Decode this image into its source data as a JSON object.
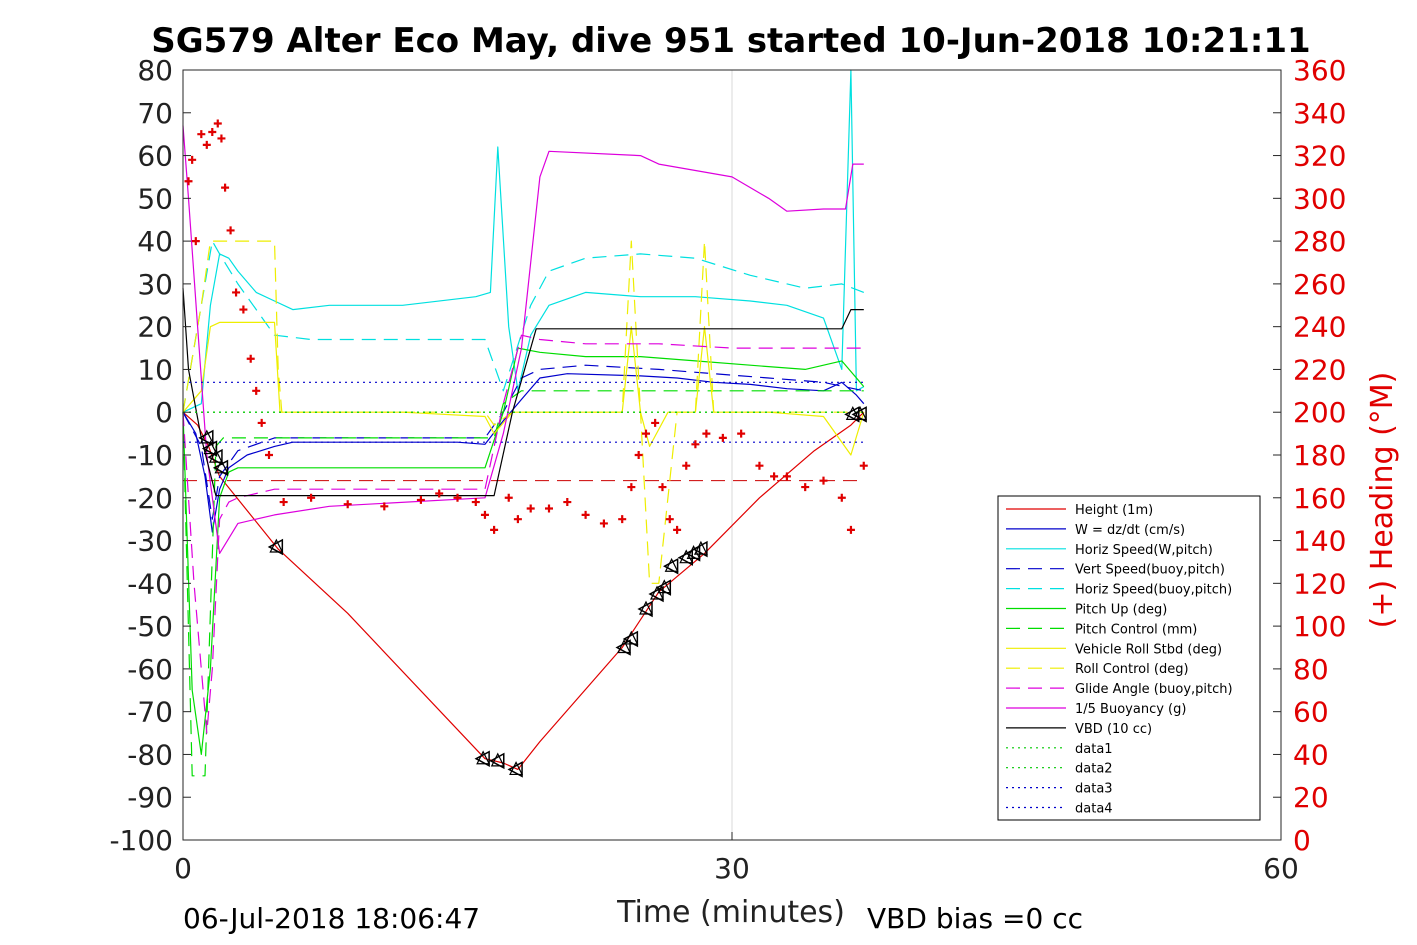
{
  "chart_data": {
    "type": "line",
    "title": "SG579 Alter Eco May, dive 951 started 10-Jun-2018 10:21:11",
    "xlabel": "Time (minutes)",
    "ylabel": "",
    "ylabel_right": "(+) Heading (°M)",
    "xlim": [
      0,
      60
    ],
    "ylim": [
      -100,
      80
    ],
    "ylim_right": [
      0,
      360
    ],
    "xticks": [
      0,
      30,
      60
    ],
    "yticks": [
      80,
      70,
      60,
      50,
      40,
      30,
      20,
      10,
      0,
      -10,
      -20,
      -30,
      -40,
      -50,
      -60,
      -70,
      -80,
      -90,
      -100
    ],
    "yticks_right": [
      360,
      340,
      320,
      300,
      280,
      260,
      240,
      220,
      200,
      180,
      160,
      140,
      120,
      100,
      80,
      60,
      40,
      20,
      0
    ],
    "grid": "x at 30 only",
    "legend_position": "lower-right",
    "footer_left": "06-Jul-2018 18:06:47",
    "footer_right": "VBD bias =0 cc",
    "colors": {
      "right_axis": "#e00000"
    },
    "series": [
      {
        "name": "Height (1m)",
        "color": "#e00000",
        "style": "solid",
        "x": [
          0,
          0.8,
          1.4,
          2,
          5.2,
          9,
          16.5,
          17.5,
          18.3,
          19.5,
          24,
          26,
          28.5,
          31.5,
          34.5,
          36.5,
          37.2
        ],
        "y": [
          0,
          -3,
          -8,
          -15,
          -32,
          -47,
          -81,
          -82,
          -83.5,
          -77,
          -55,
          -42,
          -33,
          -20,
          -9,
          -3,
          0
        ]
      },
      {
        "name": "W = dz/dt (cm/s)",
        "color": "#0000cc",
        "style": "solid",
        "x": [
          0,
          0.7,
          1.2,
          1.6,
          2,
          2.5,
          3.5,
          5,
          6,
          9,
          12,
          15,
          16.5,
          17.5,
          18.5,
          19.5,
          21,
          25,
          27,
          29,
          31,
          33,
          35,
          36,
          36.8,
          37.2
        ],
        "y": [
          0,
          -5,
          -15,
          -28,
          -18,
          -13,
          -10,
          -8,
          -7,
          -7,
          -7,
          -7,
          -7.5,
          -2,
          3,
          8,
          9,
          8.5,
          8,
          7,
          6.5,
          5.5,
          5,
          7,
          4,
          2
        ]
      },
      {
        "name": "Horiz Speed(W,pitch)",
        "color": "#00e0e0",
        "style": "solid",
        "x": [
          0,
          1,
          1.5,
          2,
          2.5,
          3,
          4,
          5,
          6,
          8,
          12,
          16,
          16.8,
          17.2,
          17.8,
          18.3,
          19,
          20,
          22,
          25,
          28,
          31,
          33,
          35,
          36,
          36.5,
          36.8,
          37.2
        ],
        "y": [
          0,
          2,
          25,
          37,
          36,
          33,
          28,
          26,
          24,
          25,
          25,
          27,
          28,
          62,
          20,
          5,
          18,
          25,
          28,
          27,
          27,
          26,
          25,
          22,
          10,
          80,
          5,
          6
        ]
      },
      {
        "name": "Vert Speed(buoy,pitch)",
        "color": "#0000cc",
        "style": "dashed",
        "x": [
          0,
          1,
          1.6,
          2,
          3,
          5,
          8,
          12,
          16.5,
          17.5,
          18.5,
          19.5,
          22,
          26,
          29,
          32,
          35,
          37.2
        ],
        "y": [
          0,
          -8,
          -25,
          -15,
          -9,
          -6,
          -6,
          -6,
          -6,
          0,
          8,
          10,
          11,
          10,
          9,
          8,
          7,
          5
        ]
      },
      {
        "name": "Horiz Speed(buoy,pitch)",
        "color": "#00e0e0",
        "style": "dashed",
        "x": [
          0,
          1,
          1.6,
          2,
          3,
          5,
          7,
          10,
          16.5,
          17.5,
          19,
          20,
          22,
          25,
          28,
          31,
          34,
          36,
          37.2
        ],
        "y": [
          0,
          25,
          40,
          37,
          30,
          18,
          17,
          17,
          17,
          5,
          25,
          33,
          36,
          37,
          36,
          32,
          29,
          30,
          28
        ]
      },
      {
        "name": "Pitch Up (deg)",
        "color": "#00dd00",
        "style": "solid",
        "x": [
          0,
          0.5,
          1,
          1.5,
          2,
          2.5,
          3,
          5,
          8,
          12,
          16.5,
          17.5,
          18.3,
          19.5,
          22,
          25,
          28,
          31,
          34,
          36,
          37.2
        ],
        "y": [
          0,
          -65,
          -80,
          -60,
          -20,
          -14,
          -13,
          -13,
          -13,
          -13,
          -13,
          0,
          15,
          14,
          13,
          13,
          12,
          11,
          10,
          12,
          6
        ]
      },
      {
        "name": "Pitch Control (mm)",
        "color": "#00dd00",
        "style": "dashed",
        "x": [
          0,
          0.5,
          1.2,
          1.8,
          2.2,
          5,
          10,
          16.5,
          17,
          17.5,
          18.5,
          20,
          25,
          30,
          35,
          37.2
        ],
        "y": [
          0,
          -85,
          -85,
          -8,
          -6,
          -6,
          -6,
          -6,
          -6,
          2,
          5,
          5,
          5,
          5,
          5,
          5
        ]
      },
      {
        "name": "Vehicle Roll Stbd (deg)",
        "color": "#eeee00",
        "style": "solid",
        "x": [
          0,
          1,
          1.5,
          2,
          4,
          5,
          5.3,
          8,
          12,
          16.5,
          17,
          18,
          20,
          24,
          24.5,
          25,
          25.5,
          26.5,
          27,
          28,
          28.5,
          29,
          32,
          35,
          36.5,
          37.2
        ],
        "y": [
          0,
          5,
          20,
          21,
          21,
          21,
          0,
          0,
          0,
          -1,
          -5,
          0,
          0,
          0,
          20,
          0,
          -8,
          0,
          0,
          0,
          20,
          0,
          0,
          -1,
          -10,
          0
        ]
      },
      {
        "name": "Roll Control (deg)",
        "color": "#eeee00",
        "style": "dashed",
        "x": [
          0,
          1,
          1.5,
          2,
          5,
          5.2,
          5.4,
          10,
          16.5,
          17,
          18,
          20,
          24,
          24.5,
          25,
          25.5,
          26,
          27,
          28,
          28.5,
          29,
          32,
          35,
          37.2
        ],
        "y": [
          0,
          25,
          40,
          40,
          40,
          10,
          0,
          0,
          0,
          -3,
          0,
          0,
          0,
          40,
          0,
          -40,
          -40,
          0,
          0,
          40,
          0,
          0,
          0,
          0
        ]
      },
      {
        "name": "Glide Angle (buoy,pitch)",
        "color": "#dd00dd",
        "style": "dashed",
        "x": [
          0,
          0.6,
          1,
          1.3,
          1.6,
          2,
          2.5,
          3,
          5,
          10,
          16.5,
          17.5,
          18.5,
          19.5,
          22,
          26,
          30,
          34,
          37.2
        ],
        "y": [
          0,
          -40,
          -60,
          -75,
          -60,
          -25,
          -21,
          -20,
          -18,
          -18,
          -18,
          2,
          18,
          17,
          16,
          16,
          15,
          15,
          15
        ]
      },
      {
        "name": "1/5 Buoyancy (g)",
        "color": "#dd00dd",
        "style": "solid",
        "x": [
          0,
          0.3,
          0.8,
          1.3,
          2,
          3,
          5,
          8,
          16.5,
          17.5,
          18.5,
          19.5,
          20,
          25,
          26,
          30,
          32,
          33,
          35,
          36.2,
          36.6,
          37.2
        ],
        "y": [
          67,
          50,
          20,
          -10,
          -33,
          -26,
          -24,
          -22,
          -20,
          -5,
          15,
          55,
          61,
          60,
          58,
          55,
          50,
          47,
          47.5,
          47.5,
          58,
          58
        ]
      },
      {
        "name": "VBD (10 cc)",
        "color": "#000000",
        "style": "solid",
        "x": [
          0,
          0.3,
          1,
          1.8,
          17,
          18,
          19.3,
          20,
          30,
          34,
          36,
          36.5,
          37.2
        ],
        "y": [
          29,
          10,
          -6,
          -19.5,
          -19.5,
          0,
          19.5,
          19.5,
          19.5,
          19.5,
          19.5,
          24,
          24
        ]
      },
      {
        "name": "data1",
        "color": "#00c800",
        "style": "dotted",
        "x": [
          0,
          37.2
        ],
        "y": [
          0,
          0
        ]
      },
      {
        "name": "data2",
        "color": "#00c800",
        "style": "dotted",
        "x": [
          0,
          37.2
        ],
        "y": [
          0,
          0
        ]
      },
      {
        "name": "data3",
        "color": "#0000cc",
        "style": "dotted",
        "x": [
          0,
          37.2
        ],
        "y": [
          7,
          7
        ]
      },
      {
        "name": "data4",
        "color": "#0000cc",
        "style": "dotted",
        "x": [
          0,
          37.2
        ],
        "y": [
          -7,
          -7
        ]
      }
    ],
    "reference_lines": [
      {
        "color": "#cc0000",
        "style": "dashed",
        "y": -16,
        "x": [
          0,
          37.2
        ]
      }
    ],
    "heading": {
      "color": "#e00000",
      "axis": "right",
      "x": [
        0.3,
        0.5,
        0.7,
        1,
        1.3,
        1.6,
        1.9,
        2.1,
        2.3,
        2.6,
        2.9,
        3.3,
        3.7,
        4,
        4.3,
        4.7,
        5.5,
        7,
        9,
        11,
        13,
        14,
        15,
        16,
        16.5,
        17,
        17.8,
        18.3,
        19,
        20,
        21,
        22,
        23,
        24,
        24.5,
        24.9,
        25.3,
        25.8,
        26.2,
        26.6,
        27,
        27.5,
        28,
        28.6,
        29.5,
        30.5,
        31.5,
        32.3,
        33,
        34,
        35,
        36,
        36.5,
        37.2
      ],
      "y": [
        308,
        318,
        280,
        330,
        325,
        331,
        335,
        328,
        305,
        285,
        256,
        248,
        225,
        210,
        195,
        180,
        158,
        160,
        157,
        156,
        159,
        162,
        160,
        158,
        152,
        145,
        160,
        150,
        155,
        155,
        158,
        152,
        148,
        150,
        165,
        180,
        190,
        195,
        165,
        150,
        145,
        175,
        185,
        190,
        188,
        190,
        175,
        170,
        170,
        165,
        168,
        160,
        145,
        175
      ]
    },
    "dive_markers": {
      "color": "#000000",
      "x": [
        1.3,
        1.5,
        1.8,
        2.1,
        5.1,
        16.4,
        17.2,
        18.2,
        24.1,
        24.5,
        25.3,
        25.9,
        26.3,
        26.7,
        27.5,
        27.9,
        28.3,
        36.6,
        37
      ],
      "y": [
        -6,
        -8.5,
        -10.5,
        -13,
        -31.5,
        -81,
        -81.5,
        -83.5,
        -55,
        -53,
        -46,
        -42.5,
        -41,
        -36,
        -34,
        -33,
        -32,
        -0.5,
        -0.5
      ]
    }
  }
}
